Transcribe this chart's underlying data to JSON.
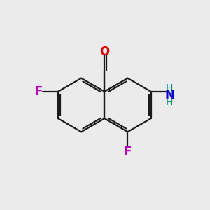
{
  "background_color": "#ebebeb",
  "bond_color": "#1a1a1a",
  "bond_width": 1.6,
  "atom_labels": {
    "O": {
      "text": "O",
      "color": "#dd0000",
      "fontsize": 12,
      "fontweight": "bold"
    },
    "F1": {
      "text": "F",
      "color": "#bb00bb",
      "fontsize": 12,
      "fontweight": "bold"
    },
    "F2": {
      "text": "F",
      "color": "#bb00bb",
      "fontsize": 12,
      "fontweight": "bold"
    },
    "N": {
      "text": "N",
      "color": "#0000cc",
      "fontsize": 12,
      "fontweight": "bold"
    },
    "H1": {
      "text": "H",
      "color": "#008888",
      "fontsize": 10,
      "fontweight": "normal"
    },
    "H2": {
      "text": "H",
      "color": "#008888",
      "fontsize": 10,
      "fontweight": "normal"
    }
  },
  "figsize": [
    3.0,
    3.0
  ],
  "dpi": 100
}
